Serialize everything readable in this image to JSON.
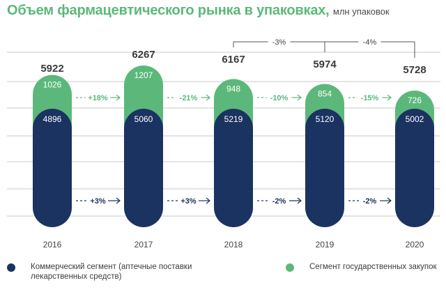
{
  "title": "Объем фармацевтического рынка в упаковках,",
  "subtitle": "млн упаковок",
  "colors": {
    "commercial": "#1b3361",
    "government": "#5cb87a",
    "grid": "#c9c9c9",
    "total_text": "#3b3b3b",
    "axis_text": "#444444"
  },
  "chart_data": {
    "type": "bar",
    "stacked": true,
    "categories": [
      "2016",
      "2017",
      "2018",
      "2019",
      "2020"
    ],
    "series": [
      {
        "name": "Коммерческий сегмент (аптечные поставки лекарственных средств)",
        "values": [
          4896,
          5060,
          5219,
          5120,
          5002
        ]
      },
      {
        "name": "Сегмент государственных закупок",
        "values": [
          1026,
          1207,
          948,
          854,
          726
        ]
      }
    ],
    "totals": [
      5922,
      6267,
      6167,
      5974,
      5728
    ],
    "yoy_government": [
      "+18%",
      "-21%",
      "-10%",
      "-15%"
    ],
    "yoy_commercial": [
      "+3%",
      "+3%",
      "-2%",
      "-2%"
    ],
    "yoy_total": [
      {
        "from": "2018",
        "to": "2019",
        "label": "-3%"
      },
      {
        "from": "2019",
        "to": "2020",
        "label": "-4%"
      }
    ],
    "legend_position": "bottom",
    "grid": true
  },
  "legend": [
    {
      "label": "Коммерческий сегмент (аптечные поставки лекарственных средств)",
      "color": "#1b3361"
    },
    {
      "label": "Сегмент государственных закупок",
      "color": "#5cb87a"
    }
  ]
}
